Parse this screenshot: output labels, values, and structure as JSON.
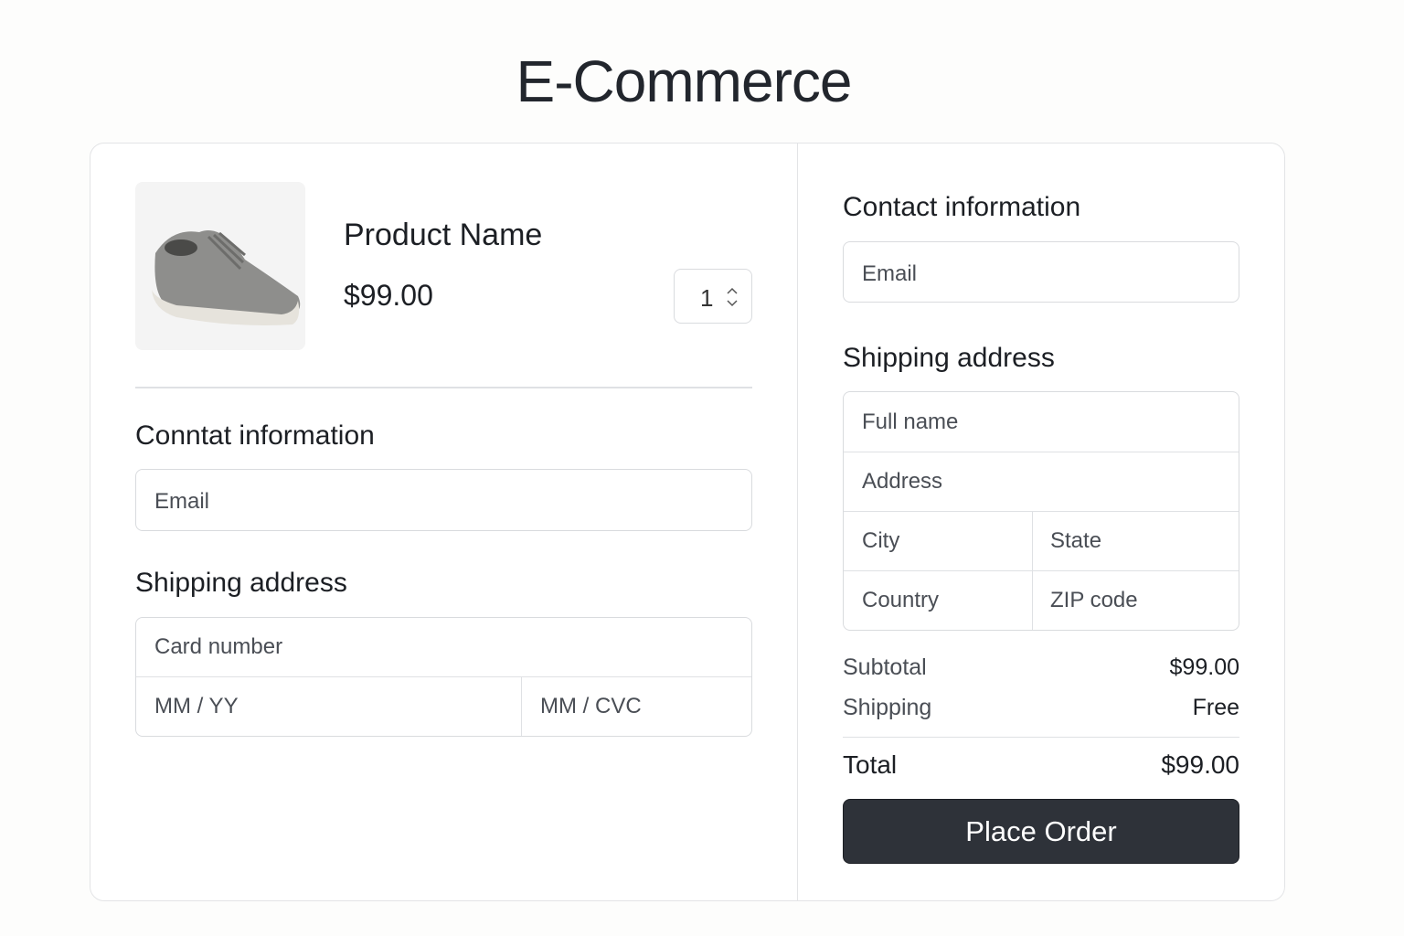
{
  "page": {
    "title": "E-Commerce"
  },
  "product": {
    "name": "Product Name",
    "price": "$99.00",
    "quantity": "1",
    "image_icon": "sneaker-image"
  },
  "left": {
    "contact_heading": "Conntat information",
    "email_placeholder": "Email",
    "shipping_heading": "Shipping address",
    "card_number_placeholder": "Card number",
    "expiry_placeholder": "MM / YY",
    "cvc_placeholder": "MM / CVC"
  },
  "right": {
    "contact_heading": "Contact information",
    "email_placeholder": "Email",
    "shipping_heading": "Shipping address",
    "full_name_placeholder": "Full name",
    "address_placeholder": "Address",
    "city_placeholder": "City",
    "state_placeholder": "State",
    "country_placeholder": "Country",
    "zip_placeholder": "ZIP code"
  },
  "summary": {
    "subtotal_label": "Subtotal",
    "subtotal_value": "$99.00",
    "shipping_label": "Shipping",
    "shipping_value": "Free",
    "total_label": "Total",
    "total_value": "$99.00",
    "place_order_label": "Place Order"
  },
  "colors": {
    "button": "#2e3239",
    "border": "#d9dbde"
  }
}
